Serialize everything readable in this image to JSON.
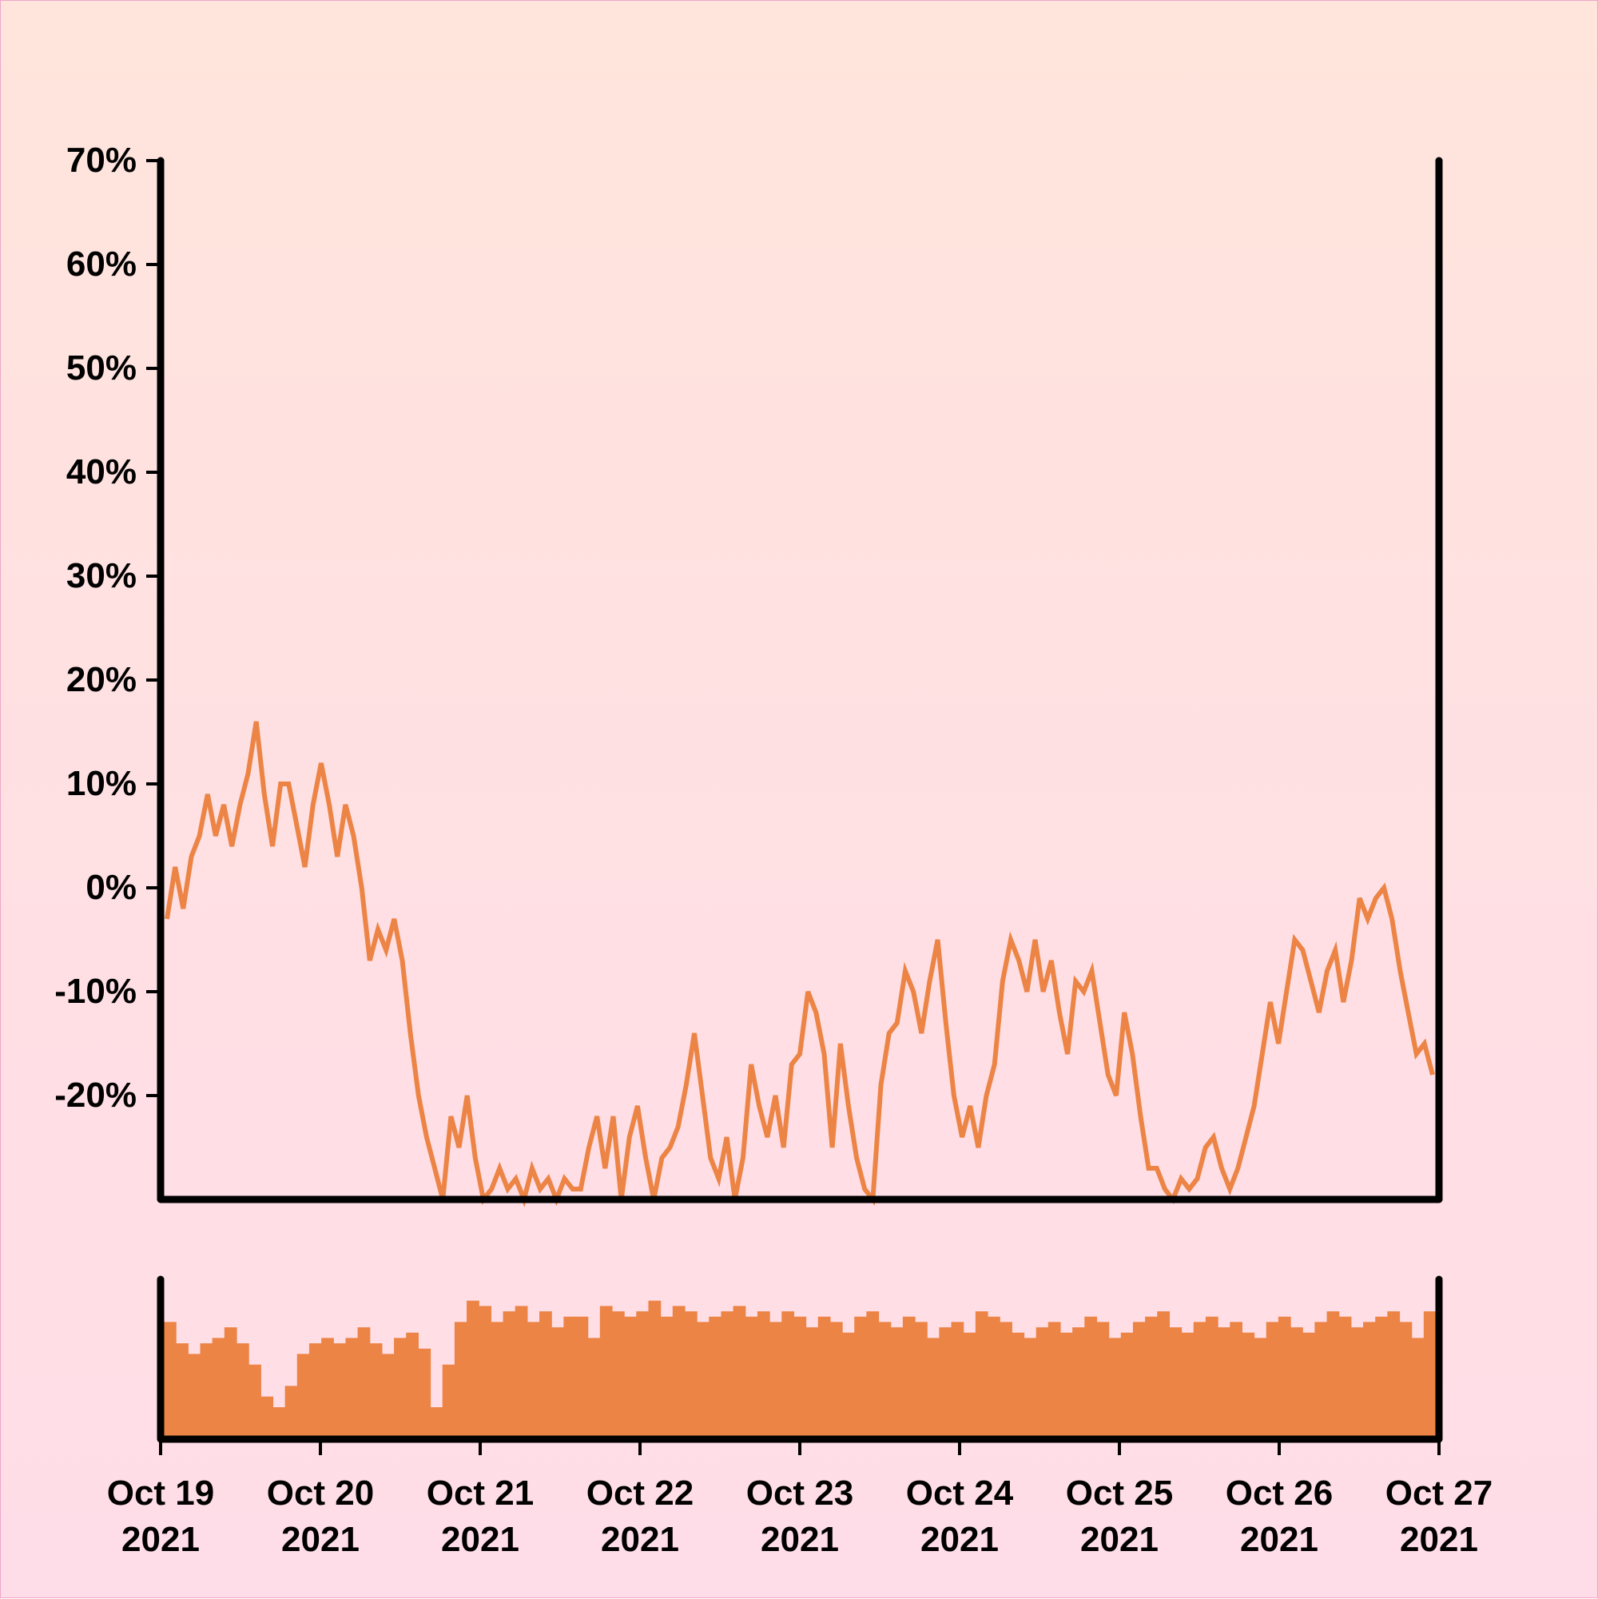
{
  "chart_data": [
    {
      "type": "line",
      "title": "",
      "xlabel": "",
      "ylabel": "",
      "ylim": [
        -30,
        70
      ],
      "y_tick_labels": [
        "70%",
        "60%",
        "50%",
        "40%",
        "30%",
        "20%",
        "10%",
        "0%",
        "-10%",
        "-20%"
      ],
      "y_tick_values": [
        70,
        60,
        50,
        40,
        30,
        20,
        10,
        0,
        -10,
        -20
      ],
      "grid": false,
      "color": "#ec8446",
      "x": {
        "start": "Oct 19 2021",
        "end": "Oct 27 2021"
      },
      "series": [
        {
          "values": [
            -3,
            2,
            -2,
            3,
            5,
            9,
            5,
            8,
            4,
            8,
            11,
            16,
            9,
            4,
            10,
            10,
            6,
            2,
            8,
            12,
            8,
            3,
            8,
            5,
            0,
            -7,
            -4,
            -6,
            -3,
            -7,
            -14,
            -20,
            -24,
            -27,
            -30,
            -22,
            -25,
            -20,
            -26,
            -30,
            -29,
            -27,
            -29,
            -28,
            -30,
            -27,
            -29,
            -28,
            -30,
            -28,
            -29,
            -29,
            -25,
            -22,
            -27,
            -22,
            -30,
            -24,
            -21,
            -26,
            -30,
            -26,
            -25,
            -23,
            -19,
            -14,
            -20,
            -26,
            -28,
            -24,
            -30,
            -26,
            -17,
            -21,
            -24,
            -20,
            -25,
            -17,
            -16,
            -10,
            -12,
            -16,
            -25,
            -15,
            -21,
            -26,
            -29,
            -30,
            -19,
            -14,
            -13,
            -8,
            -10,
            -14,
            -9,
            -5,
            -13,
            -20,
            -24,
            -21,
            -25,
            -20,
            -17,
            -9,
            -5,
            -7,
            -10,
            -5,
            -10,
            -7,
            -12,
            -16,
            -9,
            -10,
            -8,
            -13,
            -18,
            -20,
            -12,
            -16,
            -22,
            -27,
            -27,
            -29,
            -30,
            -28,
            -29,
            -28,
            -25,
            -24,
            -27,
            -29,
            -27,
            -24,
            -21,
            -16,
            -11,
            -15,
            -10,
            -5,
            -6,
            -9,
            -12,
            -8,
            -6,
            -11,
            -7,
            -1,
            -3,
            -1,
            0,
            -3,
            -8,
            -12,
            -16,
            -15,
            -18
          ]
        }
      ]
    },
    {
      "type": "bar",
      "title": "",
      "ylabel": "",
      "grid": false,
      "color": "#ec8446",
      "x_tick_labels": [
        {
          "line1": "Oct 19",
          "line2": "2021"
        },
        {
          "line1": "Oct 20",
          "line2": "2021"
        },
        {
          "line1": "Oct 21",
          "line2": "2021"
        },
        {
          "line1": "Oct 22",
          "line2": "2021"
        },
        {
          "line1": "Oct 23",
          "line2": "2021"
        },
        {
          "line1": "Oct 24",
          "line2": "2021"
        },
        {
          "line1": "Oct 25",
          "line2": "2021"
        },
        {
          "line1": "Oct 26",
          "line2": "2021"
        },
        {
          "line1": "Oct 27",
          "line2": "2021"
        }
      ],
      "ylim": [
        0,
        150
      ],
      "values": [
        110,
        90,
        80,
        90,
        95,
        105,
        90,
        70,
        40,
        30,
        50,
        80,
        90,
        95,
        90,
        95,
        105,
        90,
        80,
        95,
        100,
        85,
        30,
        70,
        110,
        130,
        125,
        110,
        120,
        125,
        110,
        120,
        105,
        115,
        115,
        95,
        125,
        120,
        115,
        120,
        130,
        115,
        125,
        120,
        110,
        115,
        120,
        125,
        115,
        120,
        110,
        120,
        115,
        105,
        115,
        110,
        100,
        115,
        120,
        110,
        105,
        115,
        110,
        95,
        105,
        110,
        100,
        120,
        115,
        110,
        100,
        95,
        105,
        110,
        100,
        105,
        115,
        110,
        95,
        100,
        110,
        115,
        120,
        105,
        100,
        110,
        115,
        105,
        110,
        100,
        95,
        110,
        115,
        105,
        100,
        110,
        120,
        115,
        105,
        110,
        115,
        120,
        110,
        95,
        120
      ]
    }
  ]
}
